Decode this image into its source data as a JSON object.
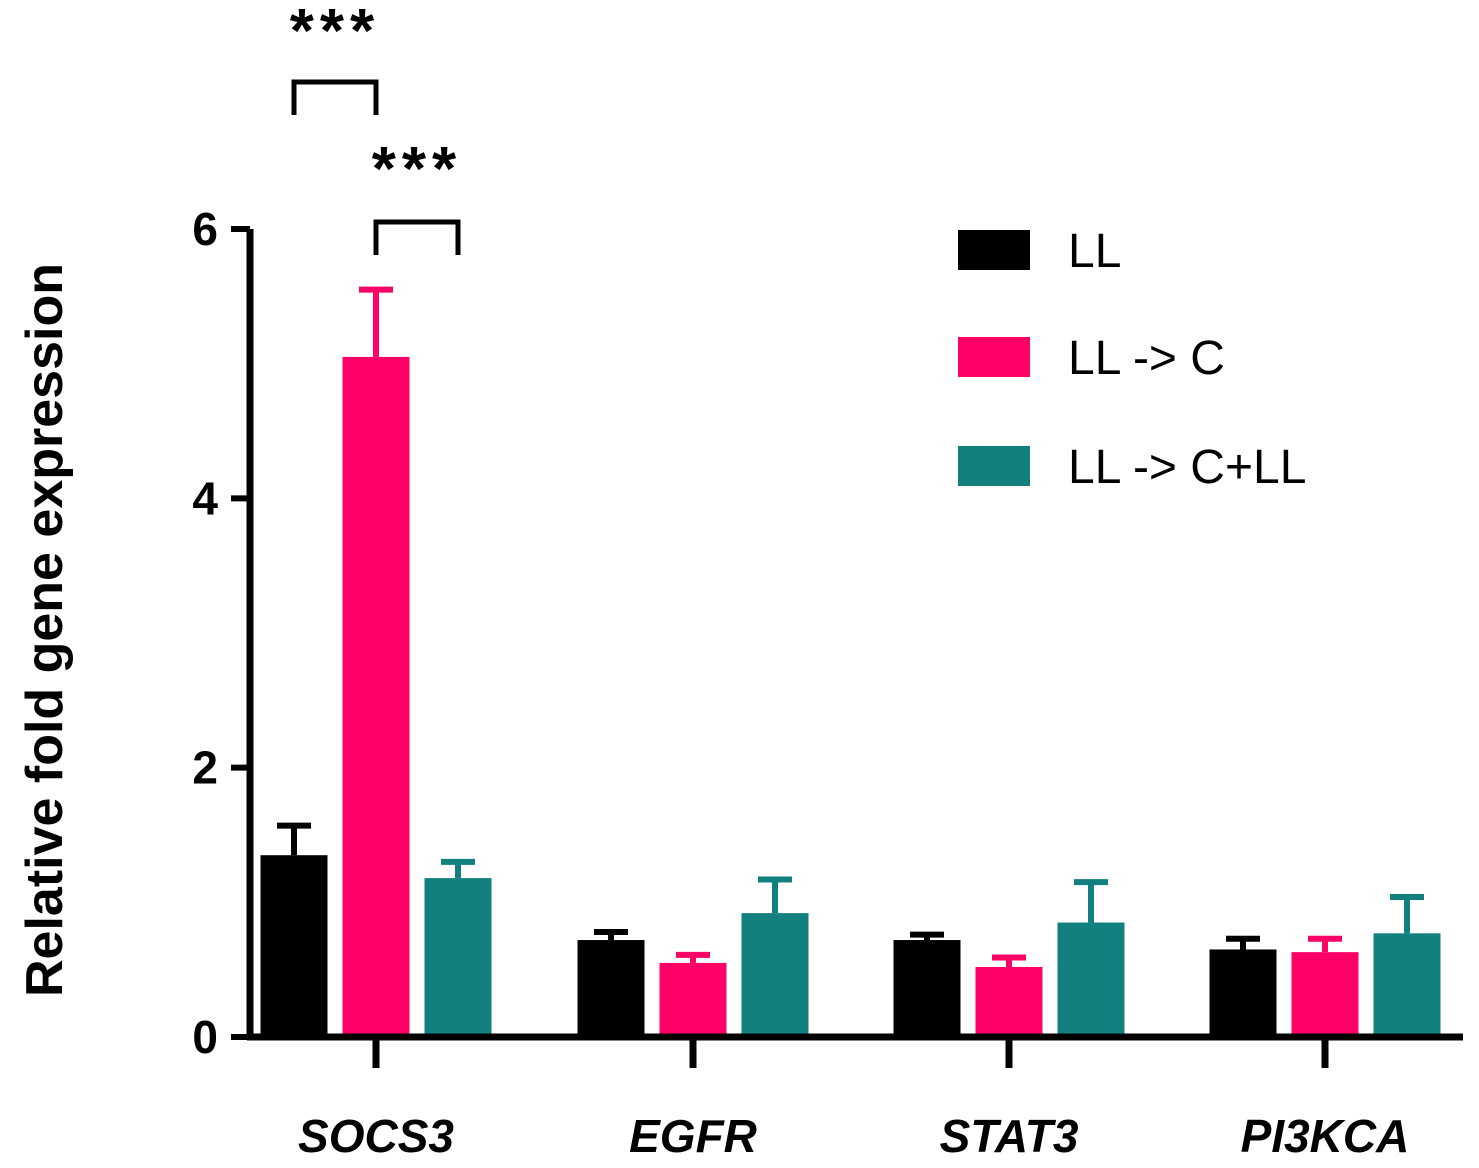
{
  "chart_data": {
    "type": "bar",
    "title": "",
    "xlabel": "",
    "ylabel": "Relative fold gene expression",
    "ylim": [
      0,
      6
    ],
    "yticks": [
      0,
      2,
      4,
      6
    ],
    "categories": [
      "SOCS3",
      "EGFR",
      "STAT3",
      "PI3KCA"
    ],
    "series": [
      {
        "name": "LL",
        "color": "#000000",
        "values": [
          1.35,
          0.72,
          0.72,
          0.65
        ],
        "errors": [
          0.22,
          0.06,
          0.04,
          0.08
        ]
      },
      {
        "name": "LL -> C",
        "color": "#ff0066",
        "values": [
          5.05,
          0.55,
          0.52,
          0.63
        ],
        "errors": [
          0.5,
          0.06,
          0.07,
          0.1
        ]
      },
      {
        "name": "LL -> C+LL",
        "color": "#138080",
        "values": [
          1.18,
          0.92,
          0.85,
          0.77
        ],
        "errors": [
          0.12,
          0.25,
          0.3,
          0.27
        ]
      }
    ],
    "legend_position": "top-right",
    "grid": false,
    "significance": [
      {
        "category": "SOCS3",
        "from_series": 0,
        "to_series": 1,
        "label": "***"
      },
      {
        "category": "SOCS3",
        "from_series": 1,
        "to_series": 2,
        "label": "***"
      }
    ]
  }
}
